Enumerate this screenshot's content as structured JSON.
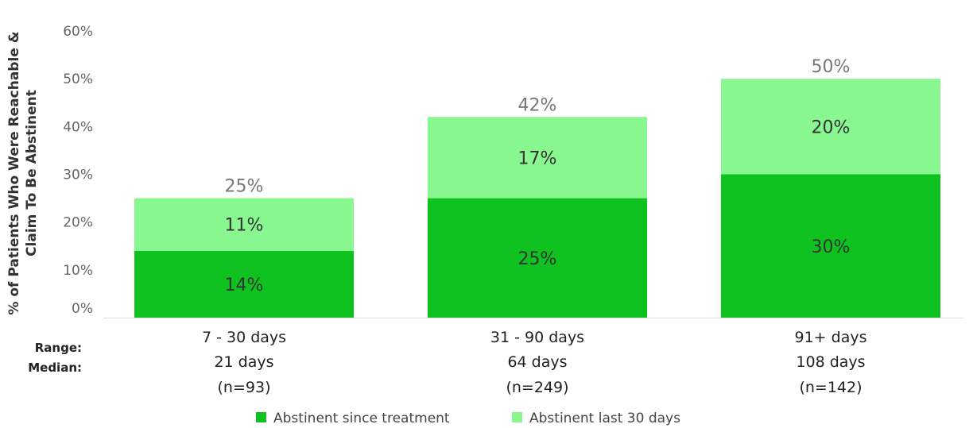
{
  "chart_data": {
    "type": "bar",
    "stacked": true,
    "categories": [
      "7 - 30 days",
      "31 - 90 days",
      "91+ days"
    ],
    "category_details": [
      {
        "median": "21 days",
        "n": "(n=93)"
      },
      {
        "median": "64 days",
        "n": "(n=249)"
      },
      {
        "median": "108 days",
        "n": "(n=142)"
      }
    ],
    "row_labels": {
      "range": "Range:",
      "median": "Median:"
    },
    "series": [
      {
        "name": "Abstinent since treatment",
        "values": [
          14,
          25,
          30
        ],
        "labels": [
          "14%",
          "25%",
          "30%"
        ],
        "color": "#0fc21f"
      },
      {
        "name": "Abstinent last 30 days",
        "values": [
          11,
          17,
          20
        ],
        "labels": [
          "11%",
          "17%",
          "20%"
        ],
        "color": "#88f790"
      }
    ],
    "totals": [
      25,
      42,
      50
    ],
    "total_labels": [
      "25%",
      "42%",
      "50%"
    ],
    "ylabel_lines": [
      "% of Patients Who Were Reachable &",
      "Claim To Be Abstinent"
    ],
    "ylim": [
      0,
      60
    ],
    "yticks": [
      0,
      10,
      20,
      30,
      40,
      50,
      60
    ],
    "ytick_labels": [
      "0%",
      "10%",
      "20%",
      "30%",
      "40%",
      "50%",
      "60%"
    ],
    "grid": false,
    "legend_position": "bottom"
  }
}
